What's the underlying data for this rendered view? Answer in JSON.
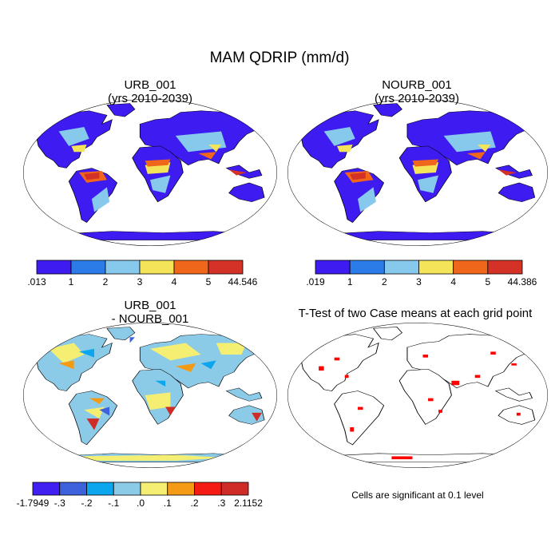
{
  "title": "MAM QDRIP (mm/d)",
  "panels": [
    {
      "title_line1": "URB_001",
      "title_line2": "(yrs 2010-2039)",
      "colorbar": {
        "colors": [
          "#3e1bf0",
          "#2b7be8",
          "#87c9ec",
          "#f3e45a",
          "#f0661a",
          "#d43227"
        ],
        "labels": [
          ".013",
          "1",
          "2",
          "3",
          "4",
          "5",
          "44.546"
        ]
      }
    },
    {
      "title_line1": "NOURB_001",
      "title_line2": "(yrs 2010-2039)",
      "colorbar": {
        "colors": [
          "#3e1bf0",
          "#2b7be8",
          "#87c9ec",
          "#f3e45a",
          "#f0661a",
          "#d43227"
        ],
        "labels": [
          ".019",
          "1",
          "2",
          "3",
          "4",
          "5",
          "44.386"
        ]
      }
    },
    {
      "title_line1": "URB_001",
      "title_line2": "- NOURB_001",
      "colorbar": {
        "colors": [
          "#3f20f0",
          "#3d62dc",
          "#0ca6ee",
          "#8ccbe8",
          "#f4ee72",
          "#f49a15",
          "#f51b15",
          "#cf2b27"
        ],
        "labels": [
          "-1.7949",
          "-.3",
          "-.2",
          "-.1",
          ".0",
          ".1",
          ".2",
          ".3",
          "2.1152"
        ]
      }
    },
    {
      "title_line1": "T-Test of two Case means at each grid point",
      "footnote": "Cells are significant at 0.1 level"
    }
  ],
  "chart_data": {
    "type": "heatmap",
    "title": "MAM QDRIP (mm/d)",
    "maps": [
      {
        "name": "URB_001",
        "period": "yrs 2010-2039",
        "range": [
          0.013,
          44.546
        ],
        "levels": [
          1,
          2,
          3,
          4,
          5
        ]
      },
      {
        "name": "NOURB_001",
        "period": "yrs 2010-2039",
        "range": [
          0.019,
          44.386
        ],
        "levels": [
          1,
          2,
          3,
          4,
          5
        ]
      },
      {
        "name": "URB_001 - NOURB_001",
        "range": [
          -1.7949,
          2.1152
        ],
        "levels": [
          -0.3,
          -0.2,
          -0.1,
          0.0,
          0.1,
          0.2,
          0.3
        ]
      },
      {
        "name": "T-Test of two Case means at each grid point",
        "significance_level": 0.1,
        "significant_color": "#ff0000"
      }
    ]
  }
}
